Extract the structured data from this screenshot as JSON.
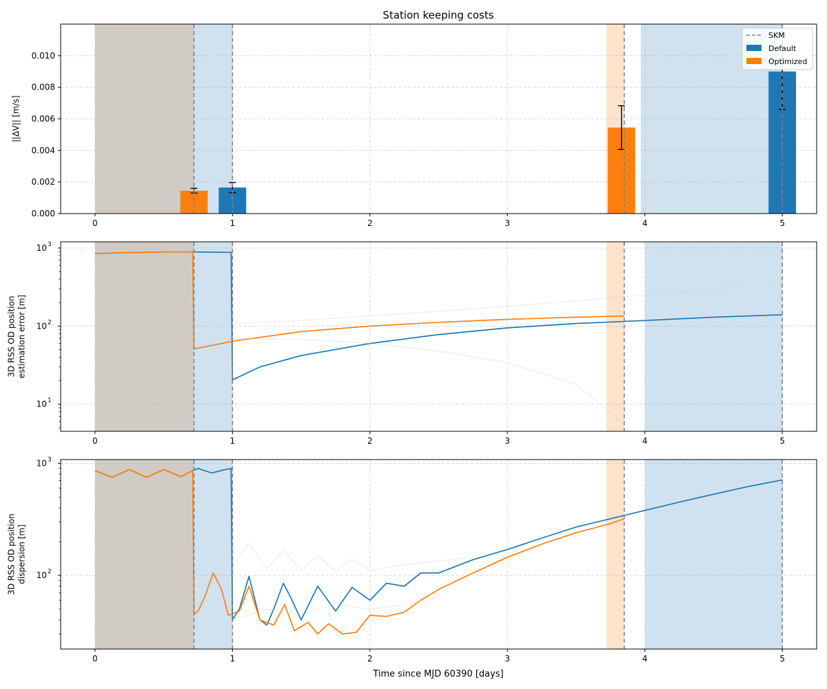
{
  "figure_title": "Station keeping costs",
  "legend": {
    "items": [
      "SKM",
      "Default",
      "Optimized"
    ],
    "placement": "top-right"
  },
  "colors": {
    "default": "#1f77b4",
    "optimized": "#ff7f0e",
    "skm_line": "#808080"
  },
  "xlabel": "Time since MJD 60390 [days]",
  "chart_data": [
    {
      "type": "bar",
      "title": "Station keeping costs",
      "ylabel": "||ΔV|| [m/s]",
      "xlim": [
        -0.25,
        5.25
      ],
      "ylim": [
        0,
        0.012
      ],
      "xticks": [
        0,
        1,
        2,
        3,
        4,
        5
      ],
      "yticks": [
        0,
        0.002,
        0.004,
        0.006,
        0.008,
        0.01
      ],
      "ytick_labels": [
        "0.000",
        "0.002",
        "0.004",
        "0.006",
        "0.008",
        "0.010"
      ],
      "grid": true,
      "shaded_regions": [
        {
          "series": "Optimized",
          "x": [
            0,
            0.72
          ]
        },
        {
          "series": "Default",
          "x": [
            0,
            1.0
          ]
        },
        {
          "series": "Optimized",
          "x": [
            3.72,
            3.85
          ]
        },
        {
          "series": "Default",
          "x": [
            3.97,
            5.0
          ]
        }
      ],
      "skm_lines": [
        0.72,
        1.0,
        3.85,
        5.0
      ],
      "series": [
        {
          "name": "Default",
          "x": [
            1.0,
            5.0
          ],
          "values": [
            0.00165,
            0.009
          ],
          "err": [
            0.00032,
            0.0024
          ]
        },
        {
          "name": "Optimized",
          "x": [
            0.72,
            3.83
          ],
          "values": [
            0.00145,
            0.00545
          ],
          "err": [
            0.00015,
            0.00138
          ]
        }
      ]
    },
    {
      "type": "line",
      "ylabel": "3D RSS OD position estimation error [m]",
      "ylabel_lines": [
        "3D RSS OD position",
        "estimation error [m]"
      ],
      "yscale": "log",
      "xlim": [
        -0.25,
        5.25
      ],
      "ylim": [
        4.5,
        1200
      ],
      "xticks": [
        0,
        1,
        2,
        3,
        4,
        5
      ],
      "ytick_labels": [
        "10^1",
        "10^2",
        "10^3"
      ],
      "grid": true,
      "shaded_regions": [
        {
          "series": "Optimized",
          "x": [
            0,
            0.72
          ]
        },
        {
          "series": "Default",
          "x": [
            0,
            1.0
          ]
        },
        {
          "series": "Optimized",
          "x": [
            3.72,
            3.85
          ]
        },
        {
          "series": "Default",
          "x": [
            4.0,
            5.0
          ]
        }
      ],
      "skm_lines": [
        0.72,
        1.0,
        3.85,
        5.0
      ],
      "series": [
        {
          "name": "Default",
          "x": [
            0,
            0.2,
            0.5,
            0.72,
            0.99,
            1.0,
            1.2,
            1.5,
            2.0,
            2.5,
            3.0,
            3.5,
            4.0,
            4.5,
            5.0
          ],
          "values": [
            850,
            870,
            890,
            890,
            880,
            20.5,
            30,
            42,
            60,
            78,
            95,
            108,
            118,
            130,
            140
          ]
        },
        {
          "name": "Optimized",
          "x": [
            0,
            0.2,
            0.5,
            0.71,
            0.72,
            1.0,
            1.5,
            2.0,
            2.5,
            3.0,
            3.5,
            3.85
          ],
          "values": [
            850,
            870,
            890,
            890,
            51,
            64,
            85,
            100,
            112,
            122,
            130,
            135
          ]
        },
        {
          "name": "Optimized (faint)",
          "x": [
            0.72,
            1.0,
            1.5,
            2.0,
            2.5,
            3.0,
            3.5,
            3.85
          ],
          "values": [
            68,
            69,
            68,
            60,
            48,
            34,
            18,
            5.5
          ]
        },
        {
          "name": "Default (faint)",
          "x": [
            1.0,
            1.5,
            2.0,
            2.5,
            3.0,
            3.5,
            4.0,
            4.5,
            5.0
          ],
          "values": [
            108,
            118,
            135,
            155,
            180,
            210,
            250,
            300,
            350
          ]
        }
      ]
    },
    {
      "type": "line",
      "ylabel": "3D RSS OD position dispersion [m]",
      "ylabel_lines": [
        "3D RSS OD position",
        "dispersion [m]"
      ],
      "yscale": "log",
      "xlim": [
        -0.25,
        5.25
      ],
      "ylim": [
        22,
        1080
      ],
      "xticks": [
        0,
        1,
        2,
        3,
        4,
        5
      ],
      "ytick_labels": [
        "10^2",
        "10^3"
      ],
      "grid": true,
      "shaded_regions": [
        {
          "series": "Optimized",
          "x": [
            0,
            0.72
          ]
        },
        {
          "series": "Default",
          "x": [
            0,
            1.0
          ]
        },
        {
          "series": "Optimized",
          "x": [
            3.72,
            3.85
          ]
        },
        {
          "series": "Default",
          "x": [
            4.0,
            5.0
          ]
        }
      ],
      "skm_lines": [
        0.72,
        1.0,
        3.85,
        5.0
      ],
      "series": [
        {
          "name": "Default",
          "x": [
            0,
            0.125,
            0.25,
            0.375,
            0.5,
            0.625,
            0.71,
            0.75,
            0.85,
            0.93,
            0.99,
            1.0,
            1.05,
            1.12,
            1.2,
            1.25,
            1.3,
            1.37,
            1.42,
            1.5,
            1.62,
            1.75,
            1.87,
            2.0,
            2.12,
            2.25,
            2.37,
            2.5,
            2.75,
            3.0,
            3.25,
            3.5,
            3.75,
            4.0,
            4.25,
            4.5,
            4.75,
            5.0
          ],
          "values": [
            860,
            750,
            880,
            750,
            880,
            760,
            860,
            900,
            820,
            870,
            900,
            40,
            50,
            98,
            40,
            36,
            50,
            85,
            65,
            40,
            80,
            48,
            78,
            60,
            85,
            80,
            105,
            105,
            138,
            170,
            215,
            270,
            320,
            380,
            450,
            530,
            620,
            710
          ]
        },
        {
          "name": "Optimized",
          "x": [
            0,
            0.125,
            0.25,
            0.375,
            0.5,
            0.625,
            0.71,
            0.72,
            0.75,
            0.8,
            0.86,
            0.92,
            0.97,
            1.05,
            1.12,
            1.2,
            1.3,
            1.38,
            1.45,
            1.55,
            1.62,
            1.7,
            1.8,
            1.9,
            2.0,
            2.12,
            2.25,
            2.37,
            2.5,
            2.75,
            3.0,
            3.25,
            3.5,
            3.75,
            3.85
          ],
          "values": [
            860,
            750,
            880,
            750,
            880,
            760,
            860,
            45,
            48,
            65,
            105,
            75,
            44,
            48,
            80,
            40,
            36,
            55,
            32,
            38,
            30,
            37,
            30,
            31,
            44,
            43,
            47,
            60,
            75,
            105,
            145,
            190,
            240,
            290,
            320
          ]
        },
        {
          "name": "Default (faint)",
          "x": [
            1.0,
            1.12,
            1.25,
            1.37,
            1.5,
            1.62,
            1.75,
            1.87,
            2.0,
            2.25,
            2.5,
            2.75
          ],
          "values": [
            120,
            195,
            115,
            170,
            110,
            150,
            110,
            140,
            110,
            125,
            135,
            145
          ]
        },
        {
          "name": "Optimized (faint)",
          "x": [
            1.0,
            1.25,
            1.5,
            1.75,
            2.0,
            2.25,
            2.5
          ],
          "values": [
            40,
            50,
            45,
            55,
            50,
            55,
            65
          ]
        }
      ]
    }
  ]
}
